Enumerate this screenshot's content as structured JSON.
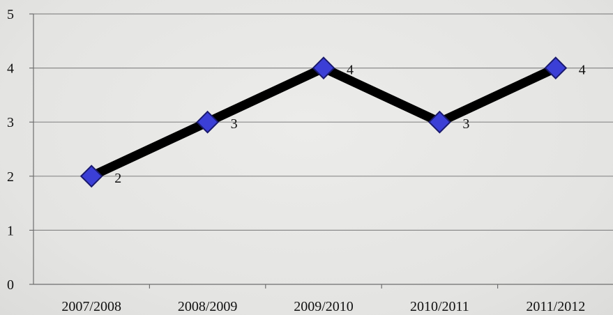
{
  "chart_data": {
    "type": "line",
    "title": "",
    "xlabel": "",
    "ylabel": "",
    "categories": [
      "2007/2008",
      "2008/2009",
      "2009/2010",
      "2010/2011",
      "2011/2012"
    ],
    "series": [
      {
        "values": [
          2,
          3,
          4,
          3,
          4
        ],
        "data_labels": [
          "2",
          "3",
          "4",
          "3",
          "4"
        ]
      }
    ],
    "ylim": [
      0,
      5
    ],
    "yticks": [
      "0",
      "1",
      "2",
      "3",
      "4",
      "5"
    ],
    "grid": true,
    "legend": "none",
    "colors": {
      "line": "#000000",
      "marker_fill": "#3b3fd6",
      "marker_stroke": "#1a1a6e",
      "grid": "#8a8a8a",
      "axis": "#6e6e6e"
    }
  }
}
